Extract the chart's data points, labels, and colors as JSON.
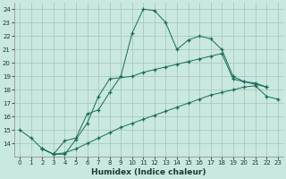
{
  "xlabel": "Humidex (Indice chaleur)",
  "ylabel": "",
  "background_color": "#c8e8e0",
  "grid_color": "#a8c8c0",
  "line_color": "#1a6b5a",
  "xlim": [
    -0.5,
    23.5
  ],
  "ylim": [
    13,
    24.5
  ],
  "xticks": [
    0,
    1,
    2,
    3,
    4,
    5,
    6,
    7,
    8,
    9,
    10,
    11,
    12,
    13,
    14,
    15,
    16,
    17,
    18,
    19,
    20,
    21,
    22,
    23
  ],
  "yticks": [
    14,
    15,
    16,
    17,
    18,
    19,
    20,
    21,
    22,
    23,
    24
  ],
  "series1_x": [
    0,
    1,
    2,
    3,
    4,
    5,
    6,
    7,
    8,
    9,
    10,
    11,
    12,
    13,
    14,
    15,
    16,
    17,
    18,
    19,
    20,
    21,
    22
  ],
  "series1_y": [
    15.0,
    14.4,
    13.6,
    13.2,
    14.2,
    14.4,
    16.2,
    16.5,
    17.8,
    19.0,
    22.2,
    24.0,
    23.9,
    23.0,
    21.0,
    21.7,
    22.0,
    21.8,
    21.0,
    19.0,
    18.6,
    18.5,
    18.2
  ],
  "series2_x": [
    2,
    3,
    4,
    5,
    6,
    7,
    8,
    10,
    11,
    12,
    13,
    14,
    15,
    16,
    17,
    18,
    19,
    20,
    21,
    22
  ],
  "series2_y": [
    13.6,
    13.2,
    13.2,
    14.3,
    15.5,
    17.5,
    18.8,
    19.0,
    19.3,
    19.5,
    19.7,
    19.9,
    20.1,
    20.3,
    20.5,
    20.7,
    18.8,
    18.6,
    18.4,
    18.2
  ],
  "series3_x": [
    2,
    3,
    4,
    5,
    6,
    7,
    8,
    9,
    10,
    11,
    12,
    13,
    14,
    15,
    16,
    17,
    18,
    19,
    20,
    21,
    22,
    23
  ],
  "series3_y": [
    13.6,
    13.2,
    13.3,
    13.6,
    14.0,
    14.4,
    14.8,
    15.2,
    15.5,
    15.8,
    16.1,
    16.4,
    16.7,
    17.0,
    17.3,
    17.6,
    17.8,
    18.0,
    18.2,
    18.3,
    17.5,
    17.3
  ]
}
